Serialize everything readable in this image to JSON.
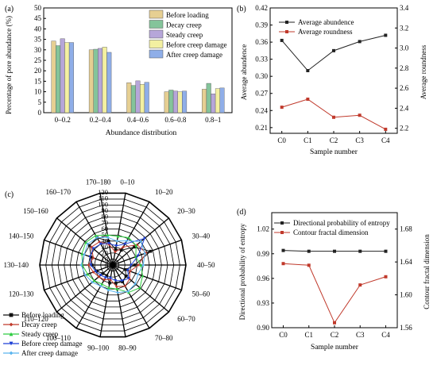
{
  "chart_data": [
    {
      "panel": "(a)",
      "type": "bar",
      "categories": [
        "0–0.2",
        "0.2–0.4",
        "0.4–0.6",
        "0.6–0.8",
        "0.8–1"
      ],
      "xlabel": "Abundance distribution",
      "ylabel": "Percentage of pore abundance (%)",
      "ylim": [
        0,
        50
      ],
      "yticks": [
        0,
        5,
        10,
        15,
        20,
        25,
        30,
        35,
        40,
        45,
        50
      ],
      "legend_position": "top-right",
      "series": [
        {
          "name": "Before loading",
          "color": "#e6cf92",
          "values": [
            34.2,
            30.0,
            14.3,
            10.0,
            11.2
          ]
        },
        {
          "name": "Decay creep",
          "color": "#84c49a",
          "values": [
            32.0,
            30.3,
            13.0,
            10.8,
            14.0
          ]
        },
        {
          "name": "Steady creep",
          "color": "#b6a6d9",
          "values": [
            35.3,
            30.7,
            15.2,
            10.3,
            9.0
          ]
        },
        {
          "name": "Before creep damage",
          "color": "#f3f0a1",
          "values": [
            33.5,
            31.3,
            13.5,
            10.0,
            11.5
          ]
        },
        {
          "name": "After creep damage",
          "color": "#8faee8",
          "values": [
            33.5,
            28.8,
            14.5,
            10.3,
            11.8
          ]
        }
      ]
    },
    {
      "panel": "(b)",
      "type": "line",
      "categories": [
        "C0",
        "C1",
        "C2",
        "C3",
        "C4"
      ],
      "xlabel": "Sample number",
      "ylabel": "Average abundence",
      "ylabel_right": "Average roundness",
      "ylim": [
        0.2,
        0.42
      ],
      "yticks": [
        0.21,
        0.24,
        0.27,
        0.3,
        0.33,
        0.36,
        0.39,
        0.42
      ],
      "ylim_right": [
        2.15,
        3.4
      ],
      "yticks_right": [
        2.2,
        2.4,
        2.6,
        2.8,
        3.0,
        3.2,
        3.4
      ],
      "legend_position": "top",
      "series": [
        {
          "name": "Average abundence",
          "axis": "left",
          "color": "#222222",
          "marker": "square",
          "values": [
            0.363,
            0.31,
            0.345,
            0.361,
            0.372
          ]
        },
        {
          "name": "Average roundness",
          "axis": "right",
          "color": "#c0392b",
          "marker": "square",
          "values": [
            2.41,
            2.49,
            2.31,
            2.33,
            2.19
          ]
        }
      ]
    },
    {
      "panel": "(c)",
      "type": "radar",
      "angle_labels": [
        "0–10",
        "10–20",
        "20–30",
        "30–40",
        "40–50",
        "50–60",
        "60–70",
        "70–80",
        "80–90",
        "90–100",
        "100–110",
        "110–120",
        "120–130",
        "130–140",
        "140–150",
        "150–160",
        "160–170",
        "170–180"
      ],
      "radial_ticks": [
        0,
        10,
        20,
        30,
        40,
        50,
        60,
        70,
        80,
        90,
        100,
        110,
        120
      ],
      "rlim": [
        0,
        120
      ],
      "legend_position": "bottom-left",
      "series": [
        {
          "name": "Before loading",
          "color": "#111111",
          "marker": "square",
          "values": [
            26,
            28,
            46,
            66,
            36,
            22,
            28,
            32,
            30,
            30,
            20,
            22,
            28,
            34,
            38,
            50,
            52,
            40
          ]
        },
        {
          "name": "Decay creep",
          "color": "#c0392b",
          "marker": "diamond",
          "values": [
            22,
            34,
            52,
            58,
            42,
            30,
            36,
            40,
            36,
            24,
            28,
            30,
            34,
            40,
            34,
            46,
            44,
            34
          ]
        },
        {
          "name": "Steady creep",
          "color": "#2ecc40",
          "marker": "triangle",
          "values": [
            48,
            52,
            50,
            40,
            46,
            52,
            58,
            52,
            40,
            38,
            36,
            40,
            44,
            50,
            54,
            58,
            56,
            50
          ]
        },
        {
          "name": "Before creep damage",
          "color": "#1c3fd6",
          "marker": "triangle-down",
          "values": [
            32,
            40,
            68,
            44,
            30,
            26,
            34,
            30,
            26,
            22,
            24,
            26,
            30,
            36,
            40,
            42,
            40,
            36
          ]
        },
        {
          "name": "After creep damage",
          "color": "#5ab4ee",
          "marker": "diamond",
          "values": [
            40,
            46,
            60,
            56,
            50,
            44,
            48,
            50,
            46,
            42,
            40,
            44,
            48,
            52,
            50,
            54,
            52,
            46
          ]
        }
      ]
    },
    {
      "panel": "(d)",
      "type": "line",
      "categories": [
        "C0",
        "C1",
        "C2",
        "C3",
        "C4"
      ],
      "xlabel": "Sample number",
      "ylabel": "Directional probability of entropy",
      "ylabel_right": "Contour fractal dimension",
      "ylim": [
        0.9,
        1.04
      ],
      "yticks": [
        0.9,
        0.93,
        0.96,
        0.99,
        1.02
      ],
      "ylim_right": [
        1.56,
        1.7
      ],
      "yticks_right": [
        1.56,
        1.6,
        1.64,
        1.68
      ],
      "legend_position": "top",
      "series": [
        {
          "name": "Directional probability of entropy",
          "axis": "left",
          "color": "#222222",
          "marker": "square",
          "values": [
            0.994,
            0.993,
            0.993,
            0.993,
            0.993
          ]
        },
        {
          "name": "Contour fractal dimension",
          "axis": "right",
          "color": "#c0392b",
          "marker": "square",
          "values": [
            1.638,
            1.636,
            1.566,
            1.612,
            1.622
          ]
        }
      ]
    }
  ]
}
